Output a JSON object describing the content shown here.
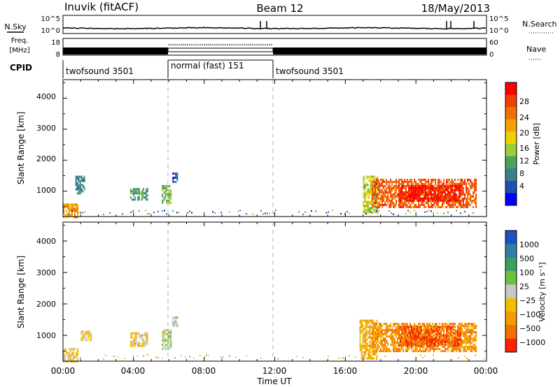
{
  "header": {
    "station": "Inuvik (fitACF)",
    "beam": "Beam 12",
    "date": "18/May/2013"
  },
  "noise_panel": {
    "left_label": "N.Sky",
    "right_label": "N.Search",
    "left_ticks": [
      "10^5",
      "10^0"
    ],
    "right_ticks": [
      "10^5",
      "10^0"
    ]
  },
  "freq_panel": {
    "left_label_1": "Freq.",
    "left_label_2": "[MHz]",
    "left_ticks": [
      "18",
      "8"
    ],
    "right_label": "Nave",
    "right_ticks": [
      "60",
      "0"
    ]
  },
  "cpid_panel": {
    "label": "CPID",
    "segments": [
      {
        "name": "twofsound 3501",
        "start_hour": 0,
        "end_hour": 6
      },
      {
        "name": "normal (fast) 151",
        "start_hour": 6,
        "end_hour": 12
      },
      {
        "name": "twofsound 3501",
        "start_hour": 12,
        "end_hour": 24
      }
    ]
  },
  "x_axis": {
    "label": "Time UT",
    "ticks": [
      "00:00",
      "04:00",
      "08:00",
      "12:00",
      "16:00",
      "20:00",
      "00:00"
    ]
  },
  "power_panel": {
    "ylabel": "Slant Range [km]",
    "y_ticks": [
      "1000",
      "2000",
      "3000",
      "4000"
    ],
    "colorbar_label": "Power [dB]",
    "colorbar_ticks": [
      "4",
      "8",
      "12",
      "16",
      "20",
      "24",
      "28"
    ]
  },
  "velocity_panel": {
    "ylabel": "Slant Range [km]",
    "y_ticks": [
      "1000",
      "2000",
      "3000",
      "4000"
    ],
    "colorbar_label": "Velocity [m s⁻¹]",
    "colorbar_ticks": [
      "1000",
      "500",
      "100",
      "25",
      "−25",
      "−100",
      "−500",
      "−1000"
    ]
  },
  "colors": {
    "power_scale": [
      "#0000ff",
      "#1f4fb3",
      "#3b7f8f",
      "#4aa35a",
      "#9ccd3a",
      "#f0d000",
      "#f5a200",
      "#f07000",
      "#f04000",
      "#ff0000"
    ],
    "velocity_scale": [
      "#2050c0",
      "#2f7fa6",
      "#3aa060",
      "#6cc040",
      "#c8c8c8",
      "#f0c000",
      "#f59a00",
      "#f07000",
      "#ff2000"
    ]
  },
  "chart_data": [
    {
      "type": "heatmap",
      "title": "",
      "xlabel": "Time UT",
      "ylabel": "Slant Range [km]",
      "xlim_hours": [
        0,
        24
      ],
      "ylim_km": [
        180,
        4600
      ],
      "value_label": "Power [dB]",
      "value_range": [
        0,
        30
      ],
      "regions": [
        {
          "t_start": 0.0,
          "t_end": 0.8,
          "r_start": 180,
          "r_end": 600,
          "value": 20
        },
        {
          "t_start": 0.7,
          "t_end": 1.2,
          "r_start": 900,
          "r_end": 1500,
          "value": 8
        },
        {
          "t_start": 3.8,
          "t_end": 4.8,
          "r_start": 700,
          "r_end": 1100,
          "value": 10
        },
        {
          "t_start": 5.6,
          "t_end": 6.1,
          "r_start": 600,
          "r_end": 1200,
          "value": 12
        },
        {
          "t_start": 6.2,
          "t_end": 6.5,
          "r_start": 1300,
          "r_end": 1600,
          "value": 6
        },
        {
          "t_start": 17.0,
          "t_end": 17.8,
          "r_start": 300,
          "r_end": 1500,
          "value": 14
        },
        {
          "t_start": 17.5,
          "t_end": 23.4,
          "r_start": 500,
          "r_end": 1400,
          "value": 24
        },
        {
          "t_start": 19.0,
          "t_end": 22.5,
          "r_start": 700,
          "r_end": 1200,
          "value": 28
        }
      ]
    },
    {
      "type": "heatmap",
      "title": "",
      "xlabel": "Time UT",
      "ylabel": "Slant Range [km]",
      "xlim_hours": [
        0,
        24
      ],
      "ylim_km": [
        180,
        4600
      ],
      "value_label": "Velocity [m s⁻¹]",
      "value_range": [
        -1000,
        1000
      ],
      "regions": [
        {
          "t_start": 0.0,
          "t_end": 0.8,
          "r_start": 180,
          "r_end": 600,
          "value": -150
        },
        {
          "t_start": 1.0,
          "t_end": 1.6,
          "r_start": 850,
          "r_end": 1150,
          "value": -120
        },
        {
          "t_start": 3.8,
          "t_end": 4.8,
          "r_start": 700,
          "r_end": 1100,
          "value": -150
        },
        {
          "t_start": 5.6,
          "t_end": 6.1,
          "r_start": 600,
          "r_end": 1200,
          "value": 60
        },
        {
          "t_start": 6.2,
          "t_end": 6.5,
          "r_start": 1300,
          "r_end": 1600,
          "value": 80
        },
        {
          "t_start": 16.8,
          "t_end": 17.8,
          "r_start": 300,
          "r_end": 1500,
          "value": -300
        },
        {
          "t_start": 17.5,
          "t_end": 23.4,
          "r_start": 500,
          "r_end": 1400,
          "value": -500
        },
        {
          "t_start": 19.0,
          "t_end": 22.5,
          "r_start": 700,
          "r_end": 1300,
          "value": -700
        }
      ]
    }
  ]
}
